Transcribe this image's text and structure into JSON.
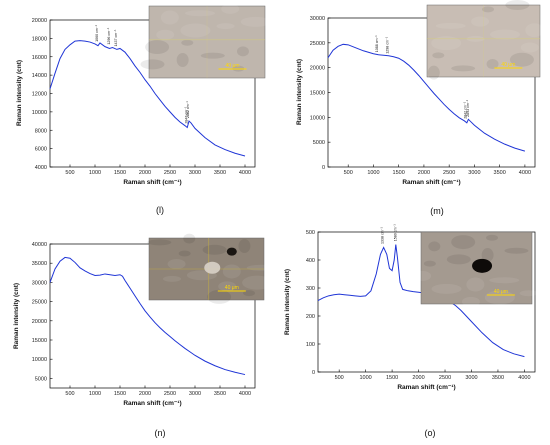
{
  "panels": [
    {
      "id": "l",
      "label": "(l)",
      "xlabel": "Raman shift (cm⁻¹)",
      "ylabel": "Raman intensity (cnt)",
      "xlim": [
        100,
        4200
      ],
      "ylim": [
        4000,
        20000
      ],
      "xticks": [
        500,
        1000,
        1500,
        2000,
        2500,
        3000,
        3500,
        4000
      ],
      "yticks": [
        4000,
        6000,
        8000,
        10000,
        12000,
        14000,
        16000,
        18000,
        20000
      ],
      "curve": [
        [
          100,
          12500
        ],
        [
          200,
          14200
        ],
        [
          300,
          15800
        ],
        [
          400,
          16800
        ],
        [
          500,
          17300
        ],
        [
          600,
          17700
        ],
        [
          700,
          17750
        ],
        [
          800,
          17700
        ],
        [
          900,
          17600
        ],
        [
          1000,
          17400
        ],
        [
          1060,
          17200
        ],
        [
          1100,
          17500
        ],
        [
          1200,
          17100
        ],
        [
          1290,
          16900
        ],
        [
          1350,
          17000
        ],
        [
          1437,
          16800
        ],
        [
          1500,
          16900
        ],
        [
          1600,
          16500
        ],
        [
          1700,
          15800
        ],
        [
          1800,
          15000
        ],
        [
          1900,
          14300
        ],
        [
          2000,
          13500
        ],
        [
          2100,
          12800
        ],
        [
          2200,
          12000
        ],
        [
          2300,
          11300
        ],
        [
          2400,
          10600
        ],
        [
          2500,
          10000
        ],
        [
          2600,
          9400
        ],
        [
          2700,
          8900
        ],
        [
          2800,
          8500
        ],
        [
          2845,
          8300
        ],
        [
          2880,
          9000
        ],
        [
          2920,
          8800
        ],
        [
          3000,
          8200
        ],
        [
          3200,
          7200
        ],
        [
          3400,
          6400
        ],
        [
          3600,
          5900
        ],
        [
          3800,
          5500
        ],
        [
          4000,
          5200
        ]
      ],
      "peaks": [
        {
          "x": 1060,
          "y": 17400,
          "text": "1060 cm⁻¹"
        },
        {
          "x": 1296,
          "y": 17100,
          "text": "1296 cm⁻¹"
        },
        {
          "x": 1437,
          "y": 16900,
          "text": "1437 cm⁻¹"
        },
        {
          "x": 2847,
          "y": 8500,
          "text": "2847 cm⁻¹"
        },
        {
          "x": 2882,
          "y": 9100,
          "text": "2882 cm⁻¹"
        }
      ],
      "inset": {
        "base": "#bfb6ad",
        "spot": null,
        "scale": "40 μm"
      }
    },
    {
      "id": "m",
      "label": "(m)",
      "xlabel": "Raman shift (cm⁻¹)",
      "ylabel": "Raman intensity (cnt)",
      "xlim": [
        100,
        4200
      ],
      "ylim": [
        0,
        30000
      ],
      "xticks": [
        500,
        1000,
        1500,
        2000,
        2500,
        3000,
        3500,
        4000
      ],
      "yticks": [
        0,
        5000,
        10000,
        15000,
        20000,
        25000,
        30000
      ],
      "curve": [
        [
          100,
          22000
        ],
        [
          200,
          23500
        ],
        [
          300,
          24300
        ],
        [
          400,
          24700
        ],
        [
          500,
          24600
        ],
        [
          600,
          24200
        ],
        [
          700,
          23800
        ],
        [
          800,
          23400
        ],
        [
          900,
          23100
        ],
        [
          1000,
          22800
        ],
        [
          1100,
          22600
        ],
        [
          1200,
          22500
        ],
        [
          1300,
          22400
        ],
        [
          1400,
          22200
        ],
        [
          1500,
          21900
        ],
        [
          1600,
          21300
        ],
        [
          1700,
          20500
        ],
        [
          1800,
          19500
        ],
        [
          1900,
          18400
        ],
        [
          2000,
          17200
        ],
        [
          2100,
          16000
        ],
        [
          2200,
          14800
        ],
        [
          2300,
          13700
        ],
        [
          2400,
          12600
        ],
        [
          2500,
          11600
        ],
        [
          2600,
          10700
        ],
        [
          2700,
          9900
        ],
        [
          2800,
          9300
        ],
        [
          2850,
          8900
        ],
        [
          2880,
          9600
        ],
        [
          2920,
          9200
        ],
        [
          3000,
          8400
        ],
        [
          3200,
          6800
        ],
        [
          3400,
          5600
        ],
        [
          3600,
          4600
        ],
        [
          3800,
          3800
        ],
        [
          4000,
          3200
        ]
      ],
      "peaks": [
        {
          "x": 1088,
          "y": 22700,
          "text": "1088 cm⁻¹"
        },
        {
          "x": 1298,
          "y": 22400,
          "text": "1298 cm⁻¹"
        },
        {
          "x": 2842,
          "y": 9300,
          "text": "2842 cm⁻¹"
        },
        {
          "x": 2893,
          "y": 9700,
          "text": "2893 cm⁻¹"
        }
      ],
      "inset": {
        "base": "#c8bdb4",
        "spot": null,
        "scale": "40 μm"
      }
    },
    {
      "id": "n",
      "label": "(n)",
      "xlabel": "Raman shift (cm⁻¹)",
      "ylabel": "Raman intensity (cnt)",
      "xlim": [
        100,
        4200
      ],
      "ylim": [
        2500,
        40000
      ],
      "xticks": [
        500,
        1000,
        1500,
        2000,
        2500,
        3000,
        3500,
        4000
      ],
      "yticks": [
        5000,
        10000,
        15000,
        20000,
        25000,
        30000,
        35000,
        40000
      ],
      "curve": [
        [
          100,
          30000
        ],
        [
          200,
          33500
        ],
        [
          300,
          35500
        ],
        [
          400,
          36500
        ],
        [
          500,
          36300
        ],
        [
          600,
          35200
        ],
        [
          700,
          33800
        ],
        [
          800,
          33000
        ],
        [
          900,
          32300
        ],
        [
          1000,
          31800
        ],
        [
          1100,
          31900
        ],
        [
          1200,
          32200
        ],
        [
          1300,
          32000
        ],
        [
          1400,
          31800
        ],
        [
          1500,
          32000
        ],
        [
          1550,
          31600
        ],
        [
          1600,
          30500
        ],
        [
          1700,
          28500
        ],
        [
          1800,
          26500
        ],
        [
          1900,
          24500
        ],
        [
          2000,
          22600
        ],
        [
          2100,
          21000
        ],
        [
          2200,
          19500
        ],
        [
          2300,
          18200
        ],
        [
          2400,
          17000
        ],
        [
          2500,
          15900
        ],
        [
          2600,
          14800
        ],
        [
          2700,
          13800
        ],
        [
          2800,
          12800
        ],
        [
          2900,
          11900
        ],
        [
          3000,
          11000
        ],
        [
          3200,
          9500
        ],
        [
          3400,
          8300
        ],
        [
          3600,
          7300
        ],
        [
          3800,
          6600
        ],
        [
          4000,
          6000
        ]
      ],
      "peaks": [],
      "inset": {
        "base": "#8f8478",
        "spot": "grain",
        "scale": "40 μm"
      }
    },
    {
      "id": "o",
      "label": "(o)",
      "xlabel": "Raman shift (cm⁻¹)",
      "ylabel": "Raman intensity (cnt)",
      "xlim": [
        100,
        4200
      ],
      "ylim": [
        0,
        500
      ],
      "xticks": [
        500,
        1000,
        1500,
        2000,
        2500,
        3000,
        3500,
        4000
      ],
      "yticks": [
        0,
        100,
        200,
        300,
        400,
        500
      ],
      "curve": [
        [
          100,
          255
        ],
        [
          200,
          265
        ],
        [
          300,
          272
        ],
        [
          400,
          276
        ],
        [
          500,
          278
        ],
        [
          600,
          276
        ],
        [
          700,
          274
        ],
        [
          800,
          272
        ],
        [
          900,
          270
        ],
        [
          1000,
          272
        ],
        [
          1100,
          290
        ],
        [
          1200,
          350
        ],
        [
          1280,
          420
        ],
        [
          1340,
          445
        ],
        [
          1400,
          420
        ],
        [
          1450,
          370
        ],
        [
          1500,
          362
        ],
        [
          1540,
          400
        ],
        [
          1570,
          455
        ],
        [
          1600,
          410
        ],
        [
          1650,
          320
        ],
        [
          1700,
          295
        ],
        [
          1800,
          290
        ],
        [
          1900,
          287
        ],
        [
          2000,
          285
        ],
        [
          2100,
          282
        ],
        [
          2200,
          278
        ],
        [
          2300,
          273
        ],
        [
          2400,
          267
        ],
        [
          2500,
          260
        ],
        [
          2600,
          250
        ],
        [
          2700,
          237
        ],
        [
          2800,
          220
        ],
        [
          2900,
          200
        ],
        [
          3000,
          180
        ],
        [
          3200,
          140
        ],
        [
          3400,
          105
        ],
        [
          3600,
          80
        ],
        [
          3800,
          65
        ],
        [
          4000,
          55
        ]
      ],
      "peaks": [
        {
          "x": 1338,
          "y": 450,
          "text": "1338 cm⁻¹"
        },
        {
          "x": 1580,
          "y": 460,
          "text": "1580 cm⁻¹"
        }
      ],
      "inset": {
        "base": "#a49a90",
        "spot": "black",
        "scale": "40 μm"
      }
    }
  ]
}
